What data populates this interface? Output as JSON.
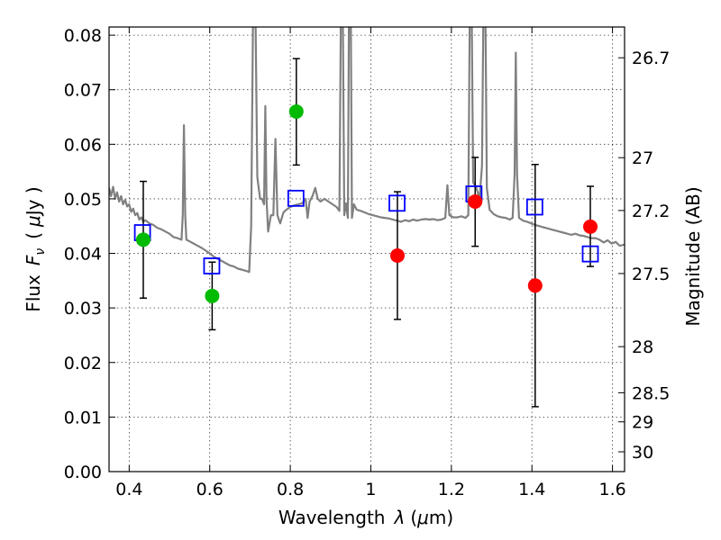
{
  "chart_data": {
    "type": "scatter",
    "xlabel_text": "Wavelength",
    "xlabel_symbol": "λ",
    "xlabel_unit_open": "(",
    "xlabel_unit_mu": "μ",
    "xlabel_unit_rest": "m)",
    "ylabel_text": "Flux",
    "ylabel_symbol": "F",
    "ylabel_sub": "ν",
    "ylabel_unit_open": "(",
    "ylabel_unit_mu": "μ",
    "ylabel_unit_rest": "Jy )",
    "y2label": "Magnitude (AB)",
    "xlim": [
      0.35,
      1.63
    ],
    "ylim": [
      0.0,
      0.0815
    ],
    "x_ticks": [
      {
        "v": 0.4,
        "label": "0.4"
      },
      {
        "v": 0.6,
        "label": "0.6"
      },
      {
        "v": 0.8,
        "label": "0.8"
      },
      {
        "v": 1.0,
        "label": "1"
      },
      {
        "v": 1.2,
        "label": "1.2"
      },
      {
        "v": 1.4,
        "label": "1.4"
      },
      {
        "v": 1.6,
        "label": "1.6"
      }
    ],
    "y_ticks": [
      {
        "v": 0.0,
        "label": "0.00"
      },
      {
        "v": 0.01,
        "label": "0.01"
      },
      {
        "v": 0.02,
        "label": "0.02"
      },
      {
        "v": 0.03,
        "label": "0.03"
      },
      {
        "v": 0.04,
        "label": "0.04"
      },
      {
        "v": 0.05,
        "label": "0.05"
      },
      {
        "v": 0.06,
        "label": "0.06"
      },
      {
        "v": 0.07,
        "label": "0.07"
      },
      {
        "v": 0.08,
        "label": "0.08"
      }
    ],
    "y2_ticks": [
      {
        "mag": 26.7,
        "label": "26.7"
      },
      {
        "mag": 27,
        "label": "27"
      },
      {
        "mag": 27.2,
        "label": "27.2"
      },
      {
        "mag": 27.5,
        "label": "27.5"
      },
      {
        "mag": 28,
        "label": "28"
      },
      {
        "mag": 28.5,
        "label": "28.5"
      },
      {
        "mag": 29,
        "label": "29"
      },
      {
        "mag": 30,
        "label": "30"
      }
    ],
    "grid": true,
    "colors": {
      "spectrum": "#808080",
      "model_squares": "#0000ff",
      "green_points": "#00bb00",
      "red_points": "#ff0000",
      "error_bars": "#000000"
    },
    "spectrum": {
      "name": "",
      "points": [
        [
          0.35,
          0.052
        ],
        [
          0.355,
          0.0505
        ],
        [
          0.36,
          0.0522
        ],
        [
          0.365,
          0.05
        ],
        [
          0.37,
          0.0512
        ],
        [
          0.375,
          0.0495
        ],
        [
          0.38,
          0.0505
        ],
        [
          0.385,
          0.049
        ],
        [
          0.39,
          0.0498
        ],
        [
          0.395,
          0.0486
        ],
        [
          0.4,
          0.049
        ],
        [
          0.405,
          0.0476
        ],
        [
          0.41,
          0.0482
        ],
        [
          0.415,
          0.047
        ],
        [
          0.42,
          0.0474
        ],
        [
          0.425,
          0.0462
        ],
        [
          0.43,
          0.0466
        ],
        [
          0.435,
          0.0458
        ],
        [
          0.44,
          0.0461
        ],
        [
          0.45,
          0.0455
        ],
        [
          0.46,
          0.0452
        ],
        [
          0.47,
          0.0447
        ],
        [
          0.48,
          0.0444
        ],
        [
          0.49,
          0.044
        ],
        [
          0.5,
          0.0436
        ],
        [
          0.51,
          0.043
        ],
        [
          0.52,
          0.0428
        ],
        [
          0.53,
          0.0425
        ],
        [
          0.533,
          0.047
        ],
        [
          0.536,
          0.0635
        ],
        [
          0.539,
          0.047
        ],
        [
          0.542,
          0.0425
        ],
        [
          0.55,
          0.0422
        ],
        [
          0.56,
          0.0418
        ],
        [
          0.57,
          0.0414
        ],
        [
          0.58,
          0.041
        ],
        [
          0.59,
          0.0405
        ],
        [
          0.6,
          0.04
        ],
        [
          0.61,
          0.0394
        ],
        [
          0.62,
          0.039
        ],
        [
          0.63,
          0.0386
        ],
        [
          0.64,
          0.0382
        ],
        [
          0.65,
          0.0378
        ],
        [
          0.66,
          0.0376
        ],
        [
          0.67,
          0.0372
        ],
        [
          0.68,
          0.037
        ],
        [
          0.69,
          0.0368
        ],
        [
          0.698,
          0.0366
        ],
        [
          0.703,
          0.045
        ],
        [
          0.708,
          0.088
        ],
        [
          0.713,
          0.088
        ],
        [
          0.718,
          0.054
        ],
        [
          0.725,
          0.05
        ],
        [
          0.73,
          0.05
        ],
        [
          0.735,
          0.049
        ],
        [
          0.738,
          0.067
        ],
        [
          0.741,
          0.05
        ],
        [
          0.745,
          0.044
        ],
        [
          0.752,
          0.047
        ],
        [
          0.758,
          0.047
        ],
        [
          0.763,
          0.061
        ],
        [
          0.768,
          0.047
        ],
        [
          0.775,
          0.0455
        ],
        [
          0.783,
          0.0475
        ],
        [
          0.79,
          0.048
        ],
        [
          0.8,
          0.0485
        ],
        [
          0.81,
          0.0488
        ],
        [
          0.82,
          0.049
        ],
        [
          0.83,
          0.0492
        ],
        [
          0.838,
          0.05
        ],
        [
          0.843,
          0.0465
        ],
        [
          0.848,
          0.0495
        ],
        [
          0.855,
          0.0505
        ],
        [
          0.862,
          0.052
        ],
        [
          0.868,
          0.05
        ],
        [
          0.875,
          0.0495
        ],
        [
          0.885,
          0.05
        ],
        [
          0.895,
          0.0495
        ],
        [
          0.905,
          0.049
        ],
        [
          0.915,
          0.0485
        ],
        [
          0.922,
          0.0478
        ],
        [
          0.926,
          0.088
        ],
        [
          0.93,
          0.088
        ],
        [
          0.934,
          0.047
        ],
        [
          0.938,
          0.0492
        ],
        [
          0.943,
          0.0465
        ],
        [
          0.946,
          0.088
        ],
        [
          0.95,
          0.088
        ],
        [
          0.953,
          0.0465
        ],
        [
          0.958,
          0.049
        ],
        [
          0.965,
          0.048
        ],
        [
          0.975,
          0.0478
        ],
        [
          0.985,
          0.0475
        ],
        [
          0.995,
          0.0472
        ],
        [
          1.005,
          0.047
        ],
        [
          1.015,
          0.0468
        ],
        [
          1.025,
          0.0466
        ],
        [
          1.035,
          0.0465
        ],
        [
          1.045,
          0.0464
        ],
        [
          1.055,
          0.0462
        ],
        [
          1.065,
          0.046
        ],
        [
          1.075,
          0.0458
        ],
        [
          1.085,
          0.0461
        ],
        [
          1.095,
          0.0459
        ],
        [
          1.105,
          0.0462
        ],
        [
          1.115,
          0.046
        ],
        [
          1.125,
          0.0462
        ],
        [
          1.135,
          0.0463
        ],
        [
          1.145,
          0.0462
        ],
        [
          1.155,
          0.0463
        ],
        [
          1.165,
          0.0461
        ],
        [
          1.175,
          0.0462
        ],
        [
          1.185,
          0.0465
        ],
        [
          1.19,
          0.0525
        ],
        [
          1.195,
          0.047
        ],
        [
          1.205,
          0.0466
        ],
        [
          1.215,
          0.0466
        ],
        [
          1.225,
          0.0468
        ],
        [
          1.235,
          0.0465
        ],
        [
          1.242,
          0.047
        ],
        [
          1.246,
          0.088
        ],
        [
          1.25,
          0.088
        ],
        [
          1.254,
          0.053
        ],
        [
          1.262,
          0.052
        ],
        [
          1.27,
          0.05
        ],
        [
          1.276,
          0.056
        ],
        [
          1.28,
          0.088
        ],
        [
          1.284,
          0.088
        ],
        [
          1.288,
          0.052
        ],
        [
          1.295,
          0.048
        ],
        [
          1.305,
          0.0472
        ],
        [
          1.315,
          0.0468
        ],
        [
          1.325,
          0.0466
        ],
        [
          1.335,
          0.0465
        ],
        [
          1.345,
          0.0462
        ],
        [
          1.352,
          0.0465
        ],
        [
          1.357,
          0.0545
        ],
        [
          1.36,
          0.0768
        ],
        [
          1.363,
          0.0545
        ],
        [
          1.368,
          0.0465
        ],
        [
          1.378,
          0.046
        ],
        [
          1.388,
          0.0458
        ],
        [
          1.398,
          0.0455
        ],
        [
          1.408,
          0.0452
        ],
        [
          1.418,
          0.045
        ],
        [
          1.428,
          0.0448
        ],
        [
          1.438,
          0.0446
        ],
        [
          1.448,
          0.0444
        ],
        [
          1.458,
          0.0442
        ],
        [
          1.468,
          0.044
        ],
        [
          1.478,
          0.0438
        ],
        [
          1.488,
          0.0436
        ],
        [
          1.498,
          0.0434
        ],
        [
          1.508,
          0.0436
        ],
        [
          1.518,
          0.0433
        ],
        [
          1.528,
          0.0432
        ],
        [
          1.538,
          0.043
        ],
        [
          1.548,
          0.0428
        ],
        [
          1.558,
          0.0428
        ],
        [
          1.568,
          0.0425
        ],
        [
          1.578,
          0.042
        ],
        [
          1.588,
          0.0424
        ],
        [
          1.598,
          0.0418
        ],
        [
          1.608,
          0.0421
        ],
        [
          1.618,
          0.0414
        ],
        [
          1.63,
          0.0416
        ]
      ]
    },
    "model_squares": [
      {
        "x": 0.433,
        "y": 0.0438
      },
      {
        "x": 0.605,
        "y": 0.0377
      },
      {
        "x": 0.814,
        "y": 0.0501
      },
      {
        "x": 1.065,
        "y": 0.0492
      },
      {
        "x": 1.256,
        "y": 0.0509
      },
      {
        "x": 1.407,
        "y": 0.0485
      },
      {
        "x": 1.545,
        "y": 0.0399
      }
    ],
    "green_points": [
      {
        "x": 0.435,
        "y": 0.0425,
        "ylo": 0.0318,
        "yhi": 0.0532
      },
      {
        "x": 0.606,
        "y": 0.0322,
        "ylo": 0.026,
        "yhi": 0.0384
      },
      {
        "x": 0.815,
        "y": 0.066,
        "ylo": 0.0562,
        "yhi": 0.0757
      }
    ],
    "red_points": [
      {
        "x": 1.066,
        "y": 0.0396,
        "ylo": 0.0279,
        "yhi": 0.0513
      },
      {
        "x": 1.259,
        "y": 0.0495,
        "ylo": 0.0413,
        "yhi": 0.0576
      },
      {
        "x": 1.408,
        "y": 0.0341,
        "ylo": 0.0119,
        "yhi": 0.0563
      },
      {
        "x": 1.545,
        "y": 0.0449,
        "ylo": 0.0376,
        "yhi": 0.0523
      }
    ]
  }
}
